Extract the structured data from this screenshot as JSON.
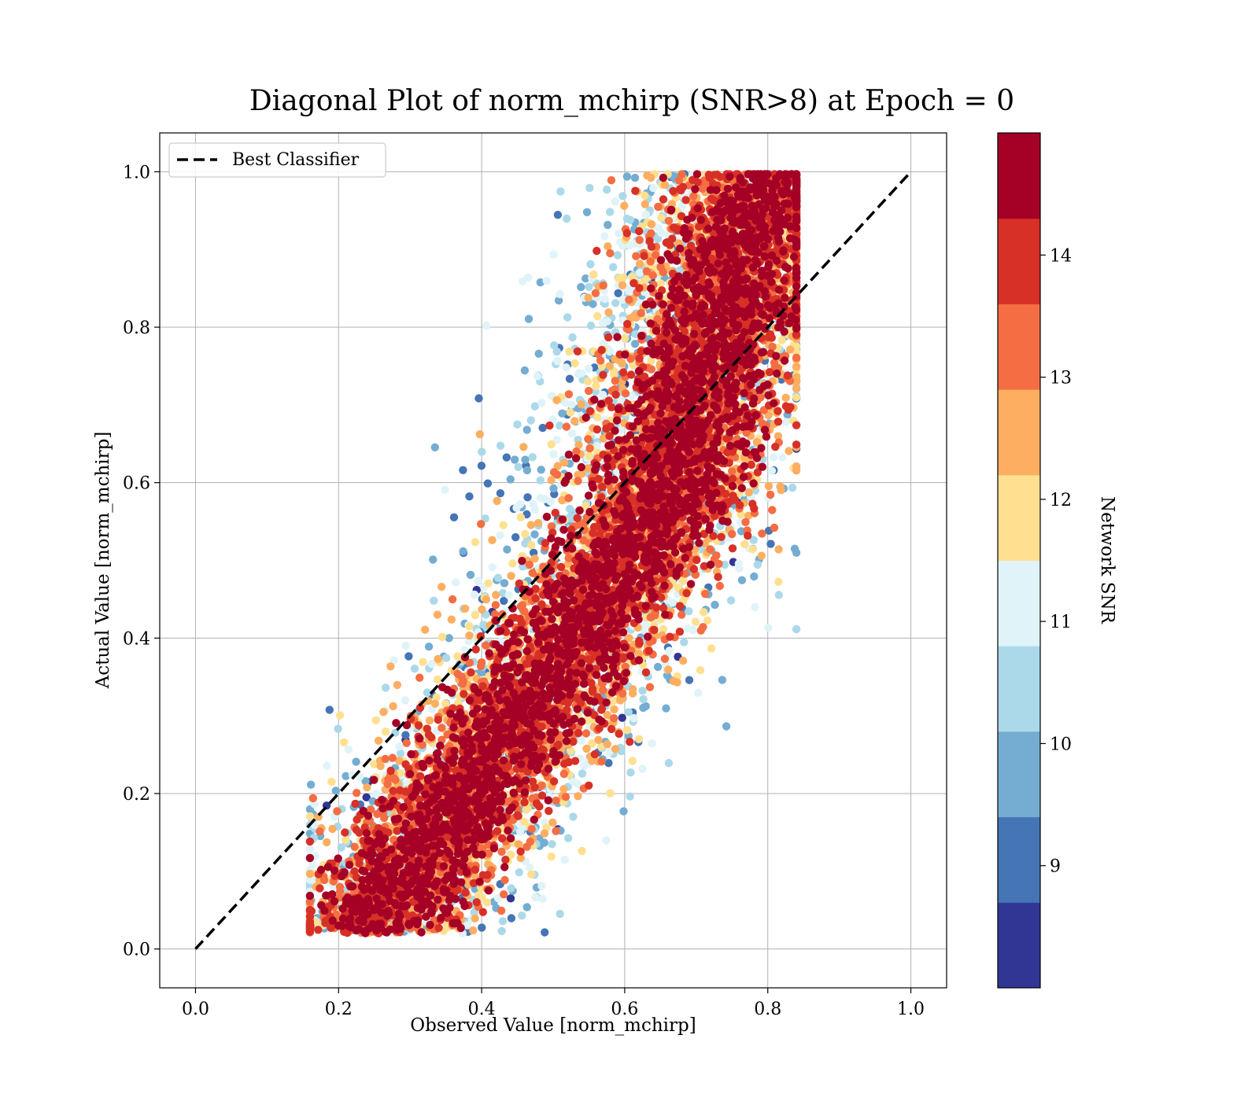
{
  "chart_data": {
    "type": "scatter",
    "title": "Diagonal Plot of norm_mchirp (SNR>8) at Epoch = 0",
    "xlabel": "Observed Value [norm_mchirp]",
    "ylabel": "Actual Value [norm_mchirp]",
    "xlim": [
      -0.05,
      1.05
    ],
    "ylim": [
      -0.05,
      1.05
    ],
    "xticks": [
      "0.0",
      "0.2",
      "0.4",
      "0.6",
      "0.8",
      "1.0"
    ],
    "yticks": [
      "0.0",
      "0.2",
      "0.4",
      "0.6",
      "0.8",
      "1.0"
    ],
    "xtick_values": [
      0.0,
      0.2,
      0.4,
      0.6,
      0.8,
      1.0
    ],
    "ytick_values": [
      0.0,
      0.2,
      0.4,
      0.6,
      0.8,
      1.0
    ],
    "grid": true,
    "reference_line": {
      "name": "Best Classifier",
      "style": "dashed",
      "color": "#000000",
      "x": [
        0.0,
        1.0
      ],
      "y": [
        0.0,
        1.0
      ]
    },
    "legend": {
      "placement": "upper-left",
      "entries": [
        "Best Classifier"
      ]
    },
    "colorbar": {
      "label": "Network SNR",
      "range": [
        8,
        15
      ],
      "tick_values": [
        9,
        10,
        11,
        12,
        13,
        14
      ],
      "ticks": [
        "9",
        "10",
        "11",
        "12",
        "13",
        "14"
      ],
      "colors": [
        "#313695",
        "#4575b4",
        "#74add1",
        "#abd9e9",
        "#e0f3f8",
        "#fee090",
        "#fdae61",
        "#f46d43",
        "#d73027",
        "#a50026"
      ]
    },
    "points": {
      "count": 12000,
      "description_note": "",
      "cluster_regions": [
        {
          "x_range": [
            0.17,
            0.55
          ],
          "y_range": [
            0.0,
            0.35
          ]
        },
        {
          "x_range": [
            0.35,
            0.7
          ],
          "y_range": [
            0.25,
            0.65
          ]
        },
        {
          "x_range": [
            0.55,
            0.84
          ],
          "y_range": [
            0.5,
            1.0
          ]
        }
      ]
    }
  }
}
